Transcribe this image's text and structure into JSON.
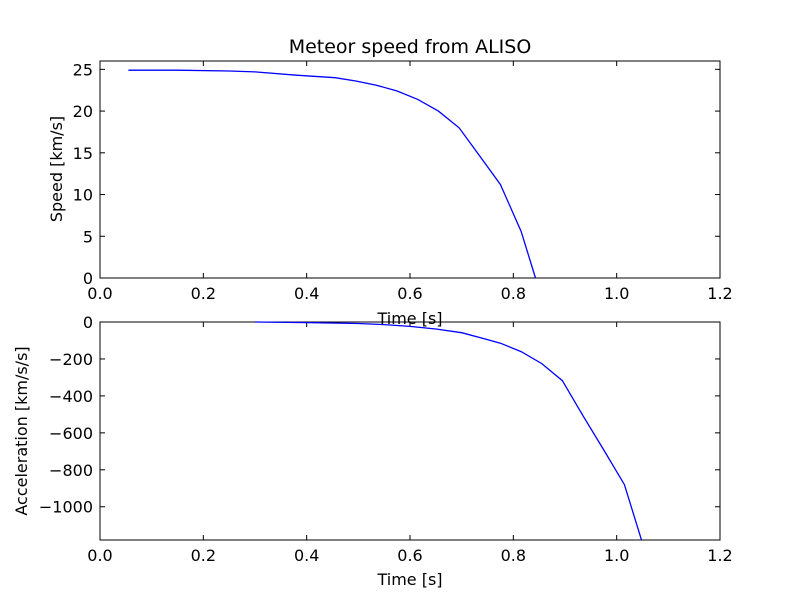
{
  "chart_data": [
    {
      "type": "line",
      "title": "Meteor speed from  ALISO",
      "xlabel": "Time [s]",
      "ylabel": "Speed [km/s]",
      "xlim": [
        0.0,
        1.2
      ],
      "ylim": [
        0,
        26
      ],
      "xticks": [
        "0.0",
        "0.2",
        "0.4",
        "0.6",
        "0.8",
        "1.0",
        "1.2"
      ],
      "yticks": [
        "0",
        "5",
        "10",
        "15",
        "20",
        "25"
      ],
      "grid": false,
      "series": [
        {
          "color": "#0000ff",
          "x": [
            0.055,
            0.15,
            0.25,
            0.3,
            0.38,
            0.455,
            0.495,
            0.535,
            0.575,
            0.615,
            0.655,
            0.695,
            0.735,
            0.775,
            0.815,
            0.843
          ],
          "y": [
            24.9,
            24.9,
            24.8,
            24.7,
            24.3,
            24.0,
            23.6,
            23.1,
            22.4,
            21.4,
            20.0,
            18.0,
            14.6,
            11.2,
            5.6,
            0.0
          ]
        }
      ]
    },
    {
      "type": "line",
      "title": "",
      "xlabel": "Time [s]",
      "ylabel": "Acceleration [km/s/s]",
      "xlim": [
        0.0,
        1.2
      ],
      "ylim": [
        -1180,
        0
      ],
      "xticks": [
        "0.0",
        "0.2",
        "0.4",
        "0.6",
        "0.8",
        "1.0",
        "1.2"
      ],
      "yticks": [
        "0",
        "−200",
        "−400",
        "−600",
        "−800",
        "−1000"
      ],
      "grid": false,
      "series": [
        {
          "color": "#0000ff",
          "x": [
            0.3,
            0.4,
            0.5,
            0.55,
            0.6,
            0.65,
            0.7,
            0.75,
            0.775,
            0.815,
            0.855,
            0.895,
            0.935,
            0.975,
            1.015,
            1.048
          ],
          "y": [
            0,
            -3,
            -8,
            -14,
            -24,
            -38,
            -58,
            -95,
            -115,
            -160,
            -225,
            -318,
            -508,
            -693,
            -880,
            -1180
          ]
        }
      ]
    }
  ]
}
